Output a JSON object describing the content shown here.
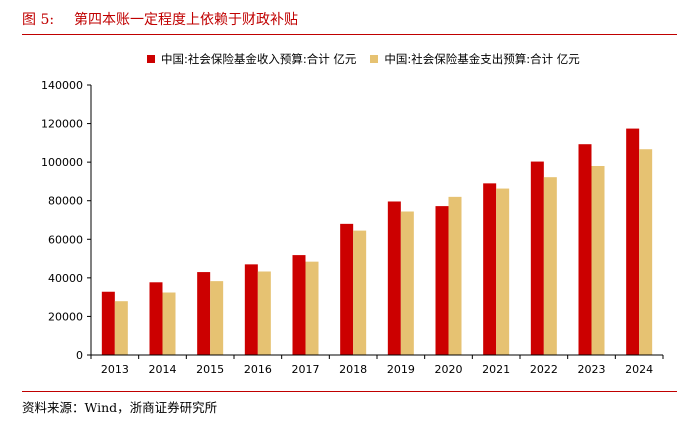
{
  "header": {
    "figure_label": "图 5:",
    "title": "第四本账一定程度上依赖于财政补贴"
  },
  "source": "资料来源：Wind，浙商证券研究所",
  "colors": {
    "accent": "#c00000",
    "series_income": "#cc0000",
    "series_expense": "#e6c272"
  },
  "chart_data": {
    "type": "bar",
    "title": "第四本账一定程度上依赖于财政补贴",
    "xlabel": "",
    "ylabel": "",
    "categories": [
      "2013",
      "2014",
      "2015",
      "2016",
      "2017",
      "2018",
      "2019",
      "2020",
      "2021",
      "2022",
      "2023",
      "2024"
    ],
    "series": [
      {
        "name": "中国:社会保险基金收入预算:合计 亿元",
        "color": "#cc0000",
        "values": [
          32800,
          37700,
          43000,
          47000,
          51800,
          68000,
          79600,
          77200,
          89000,
          100300,
          109300,
          117400
        ]
      },
      {
        "name": "中国:社会保险基金支出预算:合计 亿元",
        "color": "#e6c272",
        "values": [
          27900,
          32400,
          38300,
          43300,
          48400,
          64500,
          74400,
          82000,
          86300,
          92200,
          98000,
          106700
        ]
      }
    ],
    "ylim": [
      0,
      140000
    ],
    "yticks": [
      0,
      20000,
      40000,
      60000,
      80000,
      100000,
      120000,
      140000
    ],
    "legend_position": "top",
    "grid": false
  }
}
